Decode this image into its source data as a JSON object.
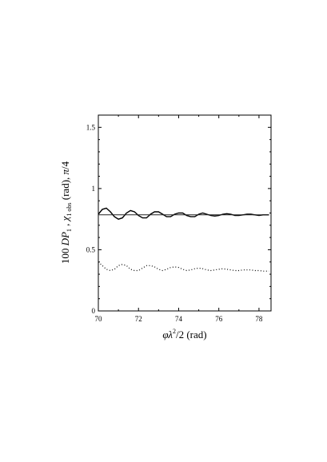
{
  "chart_data": {
    "type": "line",
    "title": "",
    "xlabel": "φλ²/2 (rad)",
    "ylabel": "100 DP₁ ,  χ₁ obs (rad),  π/4",
    "xlim": [
      70,
      78.6
    ],
    "ylim": [
      0,
      1.6
    ],
    "xticks": [
      70,
      72,
      74,
      76,
      78
    ],
    "yticks": [
      0,
      0.5,
      1,
      1.5
    ],
    "xtick_labels": [
      "70",
      "72",
      "74",
      "76",
      "78"
    ],
    "ytick_labels": [
      "0",
      "0.5",
      "1",
      "1.5"
    ],
    "grid": false,
    "legend": "none",
    "series": [
      {
        "style": "solid",
        "x": [
          70.0,
          70.2,
          70.4,
          70.6,
          70.8,
          71.0,
          71.2,
          71.4,
          71.6,
          71.8,
          72.0,
          72.2,
          72.4,
          72.6,
          72.8,
          73.0,
          73.2,
          73.4,
          73.6,
          73.8,
          74.0,
          74.2,
          74.4,
          74.6,
          74.8,
          75.0,
          75.2,
          75.4,
          75.6,
          75.8,
          76.0,
          76.2,
          76.4,
          76.6,
          76.8,
          77.0,
          77.2,
          77.4,
          77.6,
          77.8,
          78.0,
          78.2,
          78.5
        ],
        "y": [
          0.79,
          0.83,
          0.84,
          0.81,
          0.77,
          0.75,
          0.76,
          0.8,
          0.82,
          0.81,
          0.78,
          0.76,
          0.76,
          0.79,
          0.81,
          0.81,
          0.79,
          0.77,
          0.77,
          0.79,
          0.8,
          0.8,
          0.78,
          0.77,
          0.77,
          0.79,
          0.8,
          0.79,
          0.78,
          0.775,
          0.78,
          0.79,
          0.795,
          0.79,
          0.78,
          0.78,
          0.785,
          0.79,
          0.79,
          0.785,
          0.78,
          0.785,
          0.785
        ]
      },
      {
        "style": "reference",
        "x": [
          70.0,
          78.5
        ],
        "y": [
          0.785,
          0.785
        ]
      },
      {
        "style": "dotted",
        "x": [
          70.0,
          70.2,
          70.4,
          70.6,
          70.8,
          71.0,
          71.2,
          71.4,
          71.6,
          71.8,
          72.0,
          72.2,
          72.4,
          72.6,
          72.8,
          73.0,
          73.2,
          73.4,
          73.6,
          73.8,
          74.0,
          74.2,
          74.4,
          74.6,
          74.8,
          75.0,
          75.2,
          75.4,
          75.6,
          75.8,
          76.0,
          76.2,
          76.4,
          76.6,
          76.8,
          77.0,
          77.2,
          77.4,
          77.6,
          77.8,
          78.0,
          78.2,
          78.5
        ],
        "y": [
          0.4,
          0.37,
          0.34,
          0.33,
          0.34,
          0.37,
          0.38,
          0.37,
          0.34,
          0.33,
          0.33,
          0.35,
          0.37,
          0.37,
          0.36,
          0.34,
          0.33,
          0.34,
          0.355,
          0.36,
          0.355,
          0.34,
          0.33,
          0.335,
          0.345,
          0.35,
          0.345,
          0.335,
          0.33,
          0.335,
          0.34,
          0.345,
          0.34,
          0.335,
          0.33,
          0.33,
          0.335,
          0.335,
          0.335,
          0.33,
          0.33,
          0.325,
          0.325
        ]
      }
    ]
  }
}
